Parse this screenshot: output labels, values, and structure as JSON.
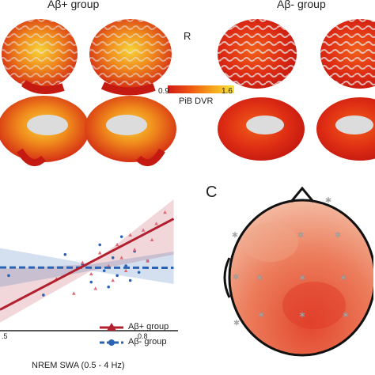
{
  "panel_a": {
    "title_pos": "Aβ+ group",
    "title_neg": "Aβ- group",
    "hemisphere_label": "R"
  },
  "colorbar": {
    "min_label": "0.9",
    "max_label": "1.6",
    "title": "PiB DVR",
    "colors": [
      "#d11a1a",
      "#ee5510",
      "#f5a21a",
      "#f7e33a"
    ]
  },
  "panel_c": {
    "letter": "C"
  },
  "scatter": {
    "xlabel": "NREM SWA (0.5 - 4 Hz)",
    "tick_left": ".5",
    "tick_right": "0.8",
    "legend": {
      "pos_label": "Aβ+ group",
      "neg_label": "Aβ- group"
    },
    "colors": {
      "pos": "#b21f2f",
      "neg": "#2a63b2"
    }
  },
  "chart_data": {
    "type": "scatter",
    "xlabel": "NREM SWA (0.5 - 4 Hz)",
    "x_ticks": [
      ".5",
      "0.8"
    ],
    "series": [
      {
        "name": "Aβ+ group",
        "marker": "triangle",
        "points": [
          [
            0.58,
            0.31
          ],
          [
            0.62,
            0.22
          ],
          [
            0.64,
            0.41
          ],
          [
            0.66,
            0.34
          ],
          [
            0.67,
            0.25
          ],
          [
            0.68,
            0.47
          ],
          [
            0.7,
            0.39
          ],
          [
            0.71,
            0.3
          ],
          [
            0.72,
            0.52
          ],
          [
            0.73,
            0.44
          ],
          [
            0.74,
            0.36
          ],
          [
            0.75,
            0.58
          ],
          [
            0.76,
            0.49
          ],
          [
            0.78,
            0.61
          ],
          [
            0.79,
            0.42
          ],
          [
            0.8,
            0.55
          ],
          [
            0.81,
            0.65
          ],
          [
            0.83,
            0.72
          ]
        ],
        "fit": [
          [
            0.45,
            0.12
          ],
          [
            0.85,
            0.68
          ]
        ]
      },
      {
        "name": "Aβ- group",
        "marker": "circle",
        "points": [
          [
            0.47,
            0.33
          ],
          [
            0.55,
            0.21
          ],
          [
            0.6,
            0.46
          ],
          [
            0.64,
            0.4
          ],
          [
            0.66,
            0.29
          ],
          [
            0.68,
            0.52
          ],
          [
            0.69,
            0.36
          ],
          [
            0.7,
            0.26
          ],
          [
            0.71,
            0.44
          ],
          [
            0.72,
            0.33
          ],
          [
            0.73,
            0.57
          ],
          [
            0.74,
            0.39
          ],
          [
            0.75,
            0.3
          ],
          [
            0.76,
            0.48
          ],
          [
            0.77,
            0.35
          ],
          [
            0.79,
            0.42
          ]
        ],
        "fit": [
          [
            0.45,
            0.38
          ],
          [
            0.85,
            0.378
          ]
        ]
      }
    ]
  }
}
